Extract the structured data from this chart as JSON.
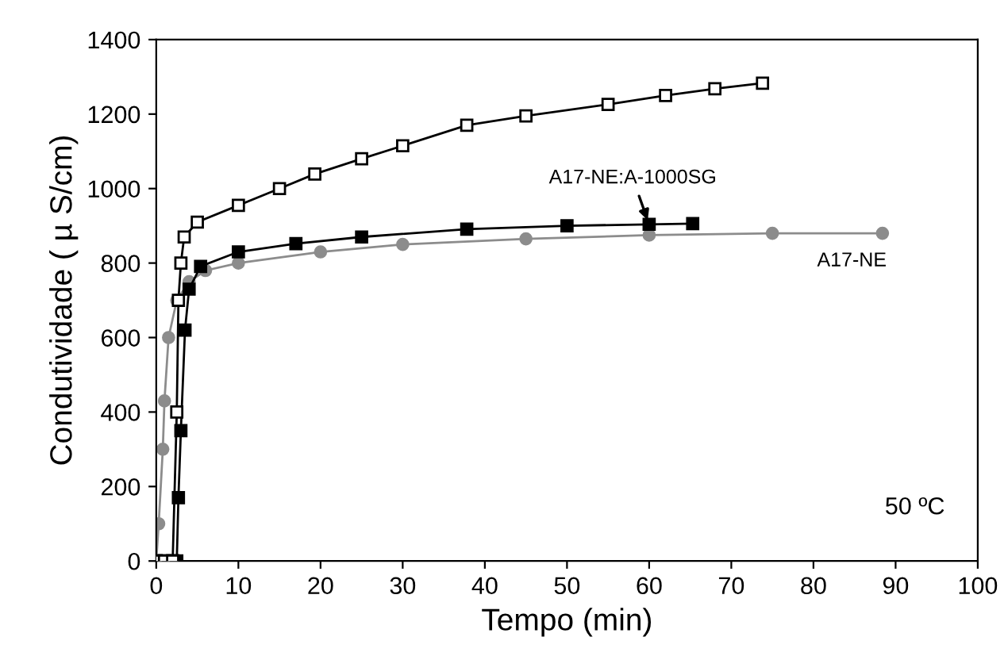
{
  "chart_data": {
    "type": "line",
    "xlabel": "Tempo (min)",
    "ylabel": "Condutividade ( µ S/cm)",
    "xlim": [
      0,
      100
    ],
    "xticks": [
      0,
      10,
      20,
      30,
      40,
      50,
      60,
      70,
      80,
      90,
      100
    ],
    "ylim": [
      0,
      1400
    ],
    "yticks": [
      0,
      200,
      400,
      600,
      800,
      1000,
      1200,
      1400
    ],
    "grid": false,
    "legend": false,
    "series": [
      {
        "color": "#000000",
        "marker": "square",
        "x": [
          0,
          1,
          2,
          2.5,
          2.7,
          3,
          3.4,
          5,
          10,
          15,
          19.3,
          25,
          30,
          37.8,
          45,
          55,
          62,
          68,
          73.8
        ],
        "values": [
          0,
          0,
          0,
          400,
          700,
          800,
          870,
          910,
          955,
          1000,
          1039,
          1080,
          1115,
          1170,
          1195,
          1226,
          1250,
          1268,
          1283
        ]
      },
      {
        "name": "A17-NE:A-1000SG",
        "color": "#000000",
        "marker": "square",
        "x": [
          0,
          1,
          2,
          2.5,
          2.7,
          3,
          3.5,
          4,
          5.4,
          10,
          17,
          25,
          37.8,
          50,
          60,
          65.3
        ],
        "values": [
          0,
          0,
          0,
          0,
          170,
          350,
          620,
          730,
          791,
          830,
          852,
          870,
          891,
          900,
          904,
          906
        ]
      },
      {
        "name": "A17-NE",
        "color": "#8c8c8c",
        "marker": "circle",
        "x": [
          0,
          0.3,
          0.8,
          1,
          1.5,
          2.5,
          4,
          6,
          10,
          20,
          30,
          45,
          60,
          75,
          88.4
        ],
        "values": [
          0,
          100,
          300,
          430,
          600,
          700,
          750,
          780,
          800,
          830,
          850,
          865,
          875,
          880,
          880
        ]
      }
    ],
    "annotations": [
      "50 ºC"
    ]
  }
}
